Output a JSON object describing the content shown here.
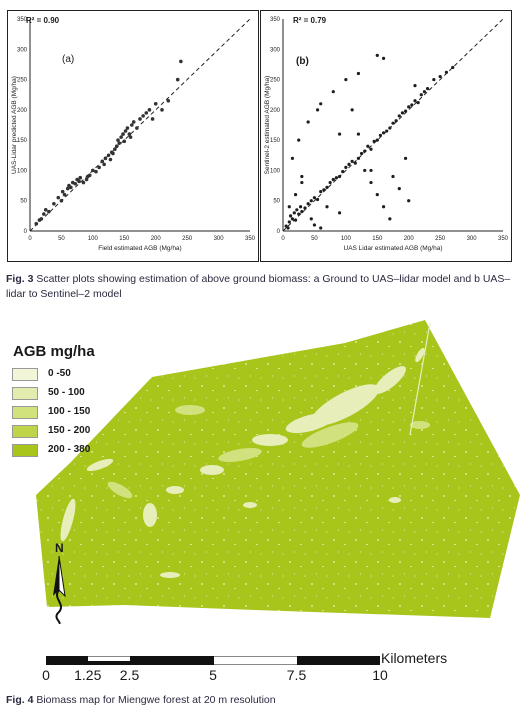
{
  "fig3": {
    "panel_a": {
      "r2": "R² = 0.90",
      "panel_label": "(a)",
      "xlabel": "Field estimated AGB (Mg/ha)",
      "ylabel": "UAS-Lidar predicted AGB (Mg/ha)",
      "ticks": [
        "0",
        "50",
        "100",
        "150",
        "200",
        "250",
        "300",
        "350"
      ]
    },
    "panel_b": {
      "r2": "R² = 0.79",
      "panel_label": "(b)",
      "xlabel": "UAS Lidar estimated AGB (Mg/ha)",
      "ylabel": "Sentinel-2 estimated AGB (Mg/ha)",
      "ticks": [
        "0",
        "50",
        "100",
        "150",
        "200",
        "250",
        "300",
        "350"
      ]
    },
    "caption_bold": "Fig. 3",
    "caption_text": " Scatter plots showing estimation of above ground biomass: a Ground to UAS–lidar model and b UAS–lidar to Sentinel–2 model"
  },
  "fig4": {
    "legend_title": "AGB mg/ha",
    "legend": [
      {
        "label": "0 -50",
        "color": "#f2f5d8"
      },
      {
        "label": "50 - 100",
        "color": "#e3ecae"
      },
      {
        "label": "100 - 150",
        "color": "#d1e17c"
      },
      {
        "label": "150 - 200",
        "color": "#bfd448"
      },
      {
        "label": "200 - 380",
        "color": "#a8c51c"
      }
    ],
    "north": "N",
    "scale_ticks": [
      "0",
      "1.25",
      "2.5",
      "5",
      "7.5",
      "10"
    ],
    "scale_unit": "Kilometers",
    "caption_bold": "Fig. 4",
    "caption_text": " Biomass map for Miengwe forest at 20 m resolution"
  },
  "chart_data": [
    {
      "type": "scatter",
      "title": "",
      "annotation": "R² = 0.90",
      "xlabel": "Field estimated AGB (Mg/ha)",
      "ylabel": "UAS-Lidar predicted AGB (Mg/ha)",
      "xlim": [
        0,
        350
      ],
      "ylim": [
        0,
        350
      ],
      "grid": false,
      "reference_line": "1:1 dashed",
      "x": [
        10,
        15,
        18,
        22,
        25,
        30,
        38,
        45,
        50,
        52,
        55,
        60,
        62,
        65,
        68,
        72,
        75,
        78,
        80,
        85,
        90,
        92,
        95,
        100,
        105,
        110,
        115,
        118,
        120,
        125,
        128,
        130,
        132,
        135,
        138,
        140,
        142,
        145,
        148,
        150,
        152,
        155,
        158,
        160,
        162,
        165,
        170,
        175,
        180,
        185,
        190,
        195,
        200,
        210,
        220,
        235,
        240
      ],
      "y": [
        12,
        18,
        20,
        28,
        35,
        32,
        45,
        55,
        50,
        65,
        60,
        70,
        75,
        72,
        80,
        78,
        85,
        82,
        88,
        80,
        85,
        90,
        92,
        100,
        98,
        105,
        115,
        110,
        120,
        125,
        118,
        130,
        128,
        135,
        140,
        150,
        145,
        155,
        160,
        148,
        165,
        170,
        160,
        155,
        175,
        180,
        170,
        185,
        190,
        195,
        200,
        185,
        210,
        200,
        215,
        250,
        280
      ]
    },
    {
      "type": "scatter",
      "title": "",
      "annotation": "R² = 0.79",
      "xlabel": "UAS Lidar estimated AGB (Mg/ha)",
      "ylabel": "Sentinel-2 estimated AGB (Mg/ha)",
      "xlim": [
        0,
        350
      ],
      "ylim": [
        0,
        350
      ],
      "grid": false,
      "reference_line": "1:1 dashed",
      "x": [
        5,
        8,
        10,
        12,
        15,
        18,
        20,
        22,
        25,
        28,
        30,
        35,
        40,
        45,
        50,
        55,
        60,
        65,
        70,
        75,
        80,
        85,
        90,
        95,
        100,
        105,
        110,
        115,
        120,
        125,
        130,
        135,
        140,
        145,
        150,
        155,
        160,
        165,
        170,
        175,
        180,
        185,
        190,
        195,
        200,
        205,
        210,
        215,
        220,
        225,
        230,
        240,
        250,
        260,
        270,
        15,
        25,
        40,
        55,
        60,
        80,
        100,
        120,
        130,
        150,
        160,
        175,
        195,
        210,
        30,
        45,
        70,
        90,
        110,
        140,
        170,
        185,
        200,
        150,
        160,
        30,
        20,
        10,
        50,
        60,
        90,
        120,
        140
      ],
      "y": [
        8,
        5,
        15,
        25,
        20,
        30,
        18,
        35,
        28,
        40,
        32,
        38,
        45,
        50,
        55,
        52,
        65,
        68,
        72,
        80,
        85,
        88,
        90,
        98,
        105,
        110,
        115,
        112,
        120,
        128,
        132,
        140,
        135,
        148,
        150,
        158,
        162,
        165,
        170,
        178,
        182,
        190,
        195,
        198,
        205,
        208,
        215,
        212,
        225,
        230,
        235,
        250,
        255,
        262,
        270,
        120,
        150,
        180,
        200,
        210,
        230,
        250,
        160,
        100,
        60,
        40,
        90,
        120,
        240,
        90,
        20,
        40,
        30,
        200,
        80,
        20,
        70,
        50,
        290,
        285,
        80,
        60,
        40,
        10,
        5,
        160,
        260,
        100
      ]
    }
  ]
}
